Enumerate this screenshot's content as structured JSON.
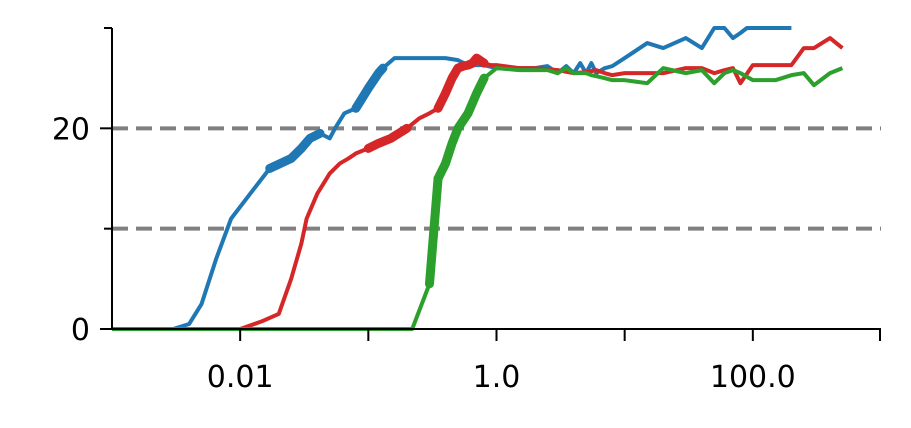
{
  "chart_data": {
    "type": "line",
    "title": "",
    "xlabel": "",
    "ylabel": "",
    "xscale": "log",
    "xlim": [
      0.001,
      1000
    ],
    "ylim": [
      0,
      30
    ],
    "x_major_ticks": [
      0.01,
      1.0,
      100.0
    ],
    "x_tick_labels": [
      "0.01",
      "1.0",
      "100.0"
    ],
    "x_minor_ticks": [
      0.1,
      10.0,
      1000.0
    ],
    "y_major_ticks": [
      0,
      20
    ],
    "y_tick_labels": [
      "0",
      "20"
    ],
    "y_minor_ticks": [
      10
    ],
    "hlines": [
      {
        "y": 20,
        "style": "dashed",
        "color": "#808080"
      },
      {
        "y": 10,
        "style": "dashed",
        "color": "#808080"
      }
    ],
    "series": [
      {
        "color": "#1f77b4",
        "x": [
          0.001,
          0.0025,
          0.003,
          0.004,
          0.005,
          0.0065,
          0.0085,
          0.012,
          0.017,
          0.025,
          0.03,
          0.035,
          0.042,
          0.05,
          0.055,
          0.065,
          0.08,
          0.1,
          0.12,
          0.13,
          0.16,
          0.2,
          0.25,
          0.3,
          0.4,
          0.5,
          0.6,
          0.8,
          1.0,
          1.5,
          2.0,
          2.5,
          3.0,
          3.5,
          4.0,
          4.5,
          5.0,
          5.5,
          6.0,
          7.0,
          8.0,
          10.0,
          15.0,
          20.0,
          30.0,
          40.0,
          50.0,
          60.0,
          70.0,
          80.0,
          90.0,
          100.0,
          150.0,
          200.0
        ],
        "y": [
          0,
          0,
          0,
          0.5,
          2.5,
          7,
          11,
          13.5,
          16,
          17,
          18,
          19,
          19.5,
          19,
          20,
          21.5,
          22,
          24,
          25.5,
          26,
          27,
          27,
          27,
          27,
          27,
          26.8,
          26.3,
          26.3,
          26,
          26,
          26,
          26.2,
          25.5,
          26.2,
          25.5,
          26.5,
          25.5,
          26.5,
          25.5,
          26,
          26.2,
          27,
          28.5,
          28,
          29,
          28,
          30,
          30,
          29,
          29.5,
          30,
          30,
          30,
          30
        ],
        "thick_segments": [
          [
            0.017,
            0.045
          ],
          [
            0.08,
            0.13
          ]
        ]
      },
      {
        "color": "#d62728",
        "x": [
          0.001,
          0.01,
          0.015,
          0.02,
          0.025,
          0.03,
          0.033,
          0.04,
          0.05,
          0.06,
          0.07,
          0.08,
          0.1,
          0.12,
          0.15,
          0.2,
          0.25,
          0.3,
          0.35,
          0.4,
          0.45,
          0.5,
          0.55,
          0.6,
          0.65,
          0.7,
          0.8,
          0.9,
          1.0,
          1.5,
          2.0,
          3.0,
          4.0,
          5.0,
          6.0,
          7.0,
          8.0,
          10.0,
          15.0,
          20.0,
          30.0,
          40.0,
          50.0,
          60.0,
          70.0,
          80.0,
          100.0,
          150.0,
          200.0,
          250.0,
          300.0,
          400.0,
          500.0
        ],
        "y": [
          0,
          0,
          0.8,
          1.5,
          5,
          8.5,
          11,
          13.5,
          15.5,
          16.5,
          17,
          17.5,
          18,
          18.5,
          19,
          20,
          21,
          21.5,
          22,
          23.5,
          25,
          26,
          26.2,
          26.3,
          26.5,
          27,
          26.5,
          26.3,
          26.3,
          26,
          26,
          25.8,
          25.5,
          25.6,
          25.8,
          25.5,
          25.3,
          25.5,
          25.5,
          25.5,
          26,
          26,
          25.5,
          25.8,
          26,
          24.5,
          26.3,
          26.3,
          26.3,
          28,
          28,
          29,
          28
        ],
        "thick_segments": [
          [
            0.1,
            0.22
          ],
          [
            0.35,
            0.8
          ]
        ]
      },
      {
        "color": "#2ca02c",
        "x": [
          0.001,
          0.22,
          0.3,
          0.35,
          0.4,
          0.45,
          0.5,
          0.6,
          0.7,
          0.8,
          1.0,
          1.5,
          2.0,
          2.5,
          3.0,
          3.5,
          4.0,
          4.5,
          5.0,
          5.5,
          6.0,
          7.0,
          8.0,
          10.0,
          15.0,
          20.0,
          30.0,
          40.0,
          50.0,
          60.0,
          70.0,
          80.0,
          100.0,
          150.0,
          200.0,
          250.0,
          300.0,
          400.0,
          500.0
        ],
        "y": [
          0,
          0,
          4.5,
          15,
          16.5,
          18.5,
          20,
          21.5,
          23.5,
          25,
          26,
          25.8,
          25.8,
          25.8,
          25.5,
          26,
          25.5,
          25.5,
          25.5,
          25.3,
          25.2,
          25,
          24.8,
          24.8,
          24.5,
          26,
          25.5,
          25.8,
          24.5,
          25.5,
          25.8,
          25.5,
          24.8,
          24.8,
          25.3,
          25.5,
          24.3,
          25.5,
          26
        ],
        "thick_segments": [
          [
            0.3,
            0.35
          ],
          [
            0.35,
            0.8
          ]
        ]
      }
    ]
  }
}
